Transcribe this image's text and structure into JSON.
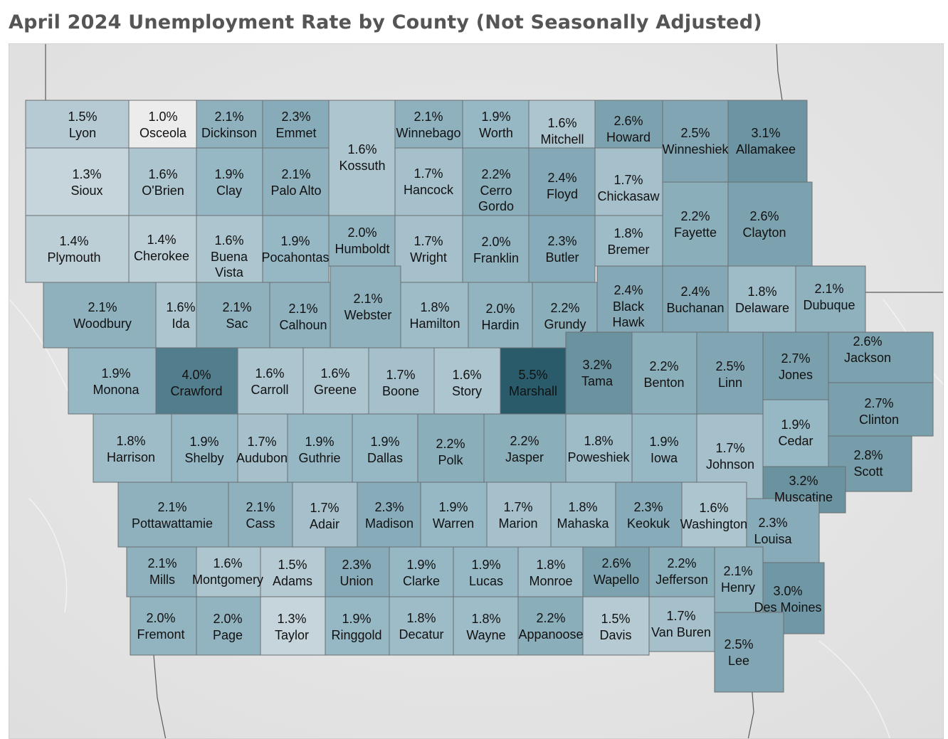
{
  "title": "April 2024 Unemployment Rate by County (Not Seasonally Adjusted)",
  "colors": {
    "low": "#ececec",
    "high": "#2a5b6a",
    "border": "#6b6f73",
    "background": "#e9e9e9"
  },
  "counties": [
    {
      "name": "Lyon",
      "rate": "1.5%"
    },
    {
      "name": "Osceola",
      "rate": "1.0%"
    },
    {
      "name": "Dickinson",
      "rate": "2.1%"
    },
    {
      "name": "Emmet",
      "rate": "2.3%"
    },
    {
      "name": "Kossuth",
      "rate": "1.6%"
    },
    {
      "name": "Winnebago",
      "rate": "2.1%"
    },
    {
      "name": "Worth",
      "rate": "1.9%"
    },
    {
      "name": "Mitchell",
      "rate": "1.6%"
    },
    {
      "name": "Howard",
      "rate": "2.6%"
    },
    {
      "name": "Winneshiek",
      "rate": "2.5%"
    },
    {
      "name": "Allamakee",
      "rate": "3.1%"
    },
    {
      "name": "Sioux",
      "rate": "1.3%"
    },
    {
      "name": "O'Brien",
      "rate": "1.6%"
    },
    {
      "name": "Clay",
      "rate": "1.9%"
    },
    {
      "name": "Palo Alto",
      "rate": "2.1%"
    },
    {
      "name": "Hancock",
      "rate": "1.7%"
    },
    {
      "name": "Cerro Gordo",
      "rate": "2.2%"
    },
    {
      "name": "Floyd",
      "rate": "2.4%"
    },
    {
      "name": "Chickasaw",
      "rate": "1.7%"
    },
    {
      "name": "Fayette",
      "rate": "2.2%"
    },
    {
      "name": "Clayton",
      "rate": "2.6%"
    },
    {
      "name": "Plymouth",
      "rate": "1.4%"
    },
    {
      "name": "Cherokee",
      "rate": "1.4%"
    },
    {
      "name": "Buena Vista",
      "rate": "1.6%"
    },
    {
      "name": "Pocahontas",
      "rate": "1.9%"
    },
    {
      "name": "Humboldt",
      "rate": "2.0%"
    },
    {
      "name": "Wright",
      "rate": "1.7%"
    },
    {
      "name": "Franklin",
      "rate": "2.0%"
    },
    {
      "name": "Butler",
      "rate": "2.3%"
    },
    {
      "name": "Bremer",
      "rate": "1.8%"
    },
    {
      "name": "Woodbury",
      "rate": "2.1%"
    },
    {
      "name": "Ida",
      "rate": "1.6%"
    },
    {
      "name": "Sac",
      "rate": "2.1%"
    },
    {
      "name": "Calhoun",
      "rate": "2.1%"
    },
    {
      "name": "Webster",
      "rate": "2.1%"
    },
    {
      "name": "Hamilton",
      "rate": "1.8%"
    },
    {
      "name": "Hardin",
      "rate": "2.0%"
    },
    {
      "name": "Grundy",
      "rate": "2.2%"
    },
    {
      "name": "Black Hawk",
      "rate": "2.4%"
    },
    {
      "name": "Buchanan",
      "rate": "2.4%"
    },
    {
      "name": "Delaware",
      "rate": "1.8%"
    },
    {
      "name": "Dubuque",
      "rate": "2.1%"
    },
    {
      "name": "Monona",
      "rate": "1.9%"
    },
    {
      "name": "Crawford",
      "rate": "4.0%"
    },
    {
      "name": "Carroll",
      "rate": "1.6%"
    },
    {
      "name": "Greene",
      "rate": "1.6%"
    },
    {
      "name": "Boone",
      "rate": "1.7%"
    },
    {
      "name": "Story",
      "rate": "1.6%"
    },
    {
      "name": "Marshall",
      "rate": "5.5%"
    },
    {
      "name": "Tama",
      "rate": "3.2%"
    },
    {
      "name": "Benton",
      "rate": "2.2%"
    },
    {
      "name": "Linn",
      "rate": "2.5%"
    },
    {
      "name": "Jones",
      "rate": "2.7%"
    },
    {
      "name": "Jackson",
      "rate": "2.6%"
    },
    {
      "name": "Harrison",
      "rate": "1.8%"
    },
    {
      "name": "Shelby",
      "rate": "1.9%"
    },
    {
      "name": "Audubon",
      "rate": "1.7%"
    },
    {
      "name": "Guthrie",
      "rate": "1.9%"
    },
    {
      "name": "Dallas",
      "rate": "1.9%"
    },
    {
      "name": "Polk",
      "rate": "2.2%"
    },
    {
      "name": "Jasper",
      "rate": "2.2%"
    },
    {
      "name": "Poweshiek",
      "rate": "1.8%"
    },
    {
      "name": "Iowa",
      "rate": "1.9%"
    },
    {
      "name": "Johnson",
      "rate": "1.7%"
    },
    {
      "name": "Cedar",
      "rate": "1.9%"
    },
    {
      "name": "Clinton",
      "rate": "2.7%"
    },
    {
      "name": "Scott",
      "rate": "2.8%"
    },
    {
      "name": "Muscatine",
      "rate": "3.2%"
    },
    {
      "name": "Pottawattamie",
      "rate": "2.1%"
    },
    {
      "name": "Cass",
      "rate": "2.1%"
    },
    {
      "name": "Adair",
      "rate": "1.7%"
    },
    {
      "name": "Madison",
      "rate": "2.3%"
    },
    {
      "name": "Warren",
      "rate": "1.9%"
    },
    {
      "name": "Marion",
      "rate": "1.7%"
    },
    {
      "name": "Mahaska",
      "rate": "1.8%"
    },
    {
      "name": "Keokuk",
      "rate": "2.3%"
    },
    {
      "name": "Washington",
      "rate": "1.6%"
    },
    {
      "name": "Louisa",
      "rate": "2.3%"
    },
    {
      "name": "Mills",
      "rate": "2.1%"
    },
    {
      "name": "Montgomery",
      "rate": "1.6%"
    },
    {
      "name": "Adams",
      "rate": "1.5%"
    },
    {
      "name": "Union",
      "rate": "2.3%"
    },
    {
      "name": "Clarke",
      "rate": "1.9%"
    },
    {
      "name": "Lucas",
      "rate": "1.9%"
    },
    {
      "name": "Monroe",
      "rate": "1.8%"
    },
    {
      "name": "Wapello",
      "rate": "2.6%"
    },
    {
      "name": "Jefferson",
      "rate": "2.2%"
    },
    {
      "name": "Henry",
      "rate": "2.1%"
    },
    {
      "name": "Des Moines",
      "rate": "3.0%"
    },
    {
      "name": "Fremont",
      "rate": "2.0%"
    },
    {
      "name": "Page",
      "rate": "2.0%"
    },
    {
      "name": "Taylor",
      "rate": "1.3%"
    },
    {
      "name": "Ringgold",
      "rate": "1.9%"
    },
    {
      "name": "Decatur",
      "rate": "1.8%"
    },
    {
      "name": "Wayne",
      "rate": "1.8%"
    },
    {
      "name": "Appanoose",
      "rate": "2.2%"
    },
    {
      "name": "Davis",
      "rate": "1.5%"
    },
    {
      "name": "Van Buren",
      "rate": "1.7%"
    },
    {
      "name": "Lee",
      "rate": "2.5%"
    }
  ]
}
